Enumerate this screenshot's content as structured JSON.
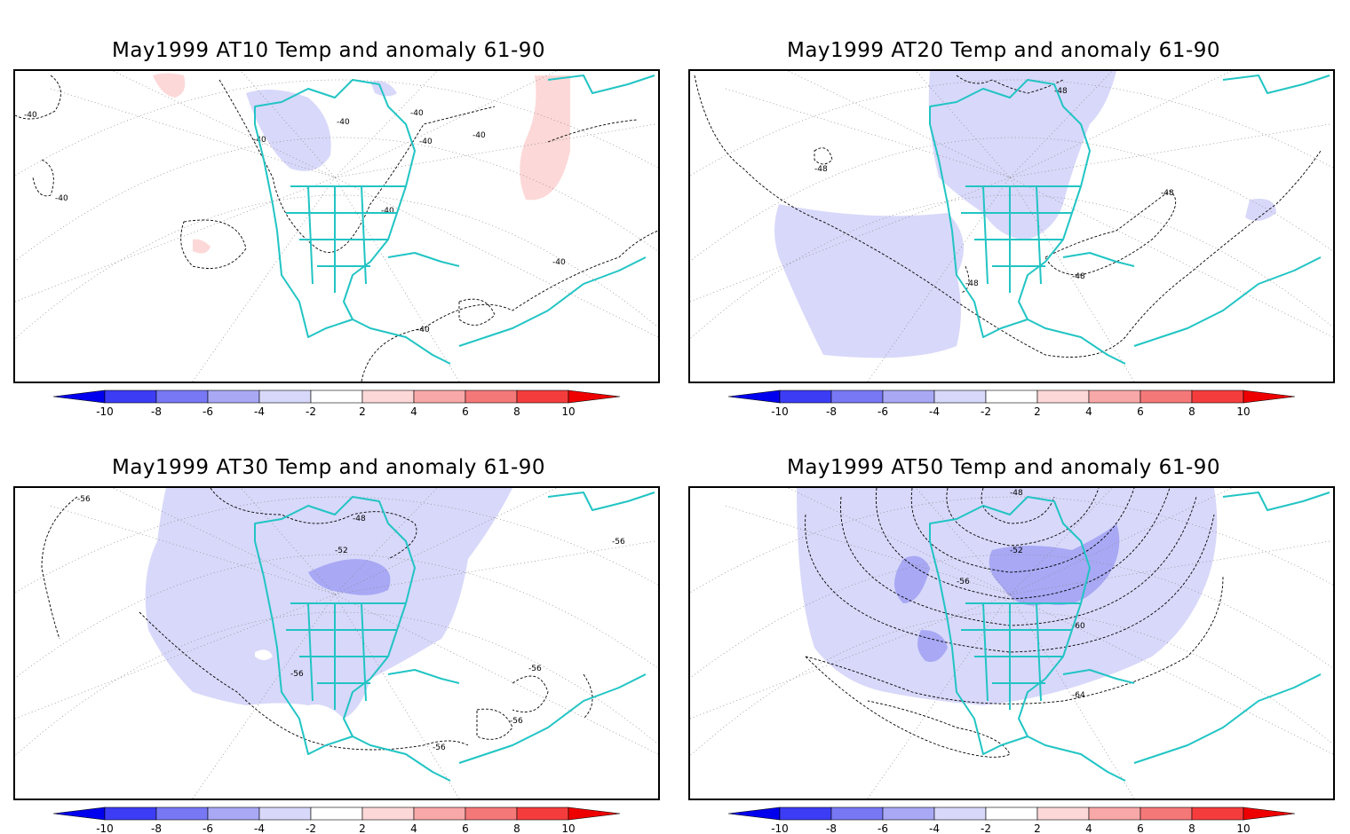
{
  "panels": [
    {
      "title": "May1999 AT10 Temp and anomaly 61-90",
      "contour_labels": [
        "-40",
        "-40",
        "-40",
        "-40",
        "-40",
        "-40",
        "-40",
        "-40",
        "-40",
        "-40"
      ]
    },
    {
      "title": "May1999 AT20 Temp and anomaly 61-90",
      "contour_labels": [
        "-48",
        "-48",
        "-48",
        "-48",
        "-48"
      ]
    },
    {
      "title": "May1999 AT30 Temp and anomaly 61-90",
      "contour_labels": [
        "-56",
        "-48",
        "-52",
        "-56",
        "-56",
        "-56",
        "-56",
        "-56"
      ]
    },
    {
      "title": "May1999 AT50 Temp and anomaly 61-90",
      "contour_labels": [
        "-48",
        "-52",
        "-56",
        "-60",
        "-64"
      ]
    }
  ],
  "colorbar": {
    "tick_labels": [
      "-10",
      "-8",
      "-6",
      "-4",
      "-2",
      "2",
      "4",
      "6",
      "8",
      "10"
    ],
    "colors": [
      "#0000ee",
      "#3c3cf5",
      "#7878f5",
      "#a8a8f5",
      "#d8d8fa",
      "#ffffff",
      "#fdd8d8",
      "#f8a8a8",
      "#f57878",
      "#f53c3c",
      "#ee0000"
    ]
  },
  "colors": {
    "coast": "#22c4c4",
    "contour": "#000000",
    "grid": "#888888"
  }
}
